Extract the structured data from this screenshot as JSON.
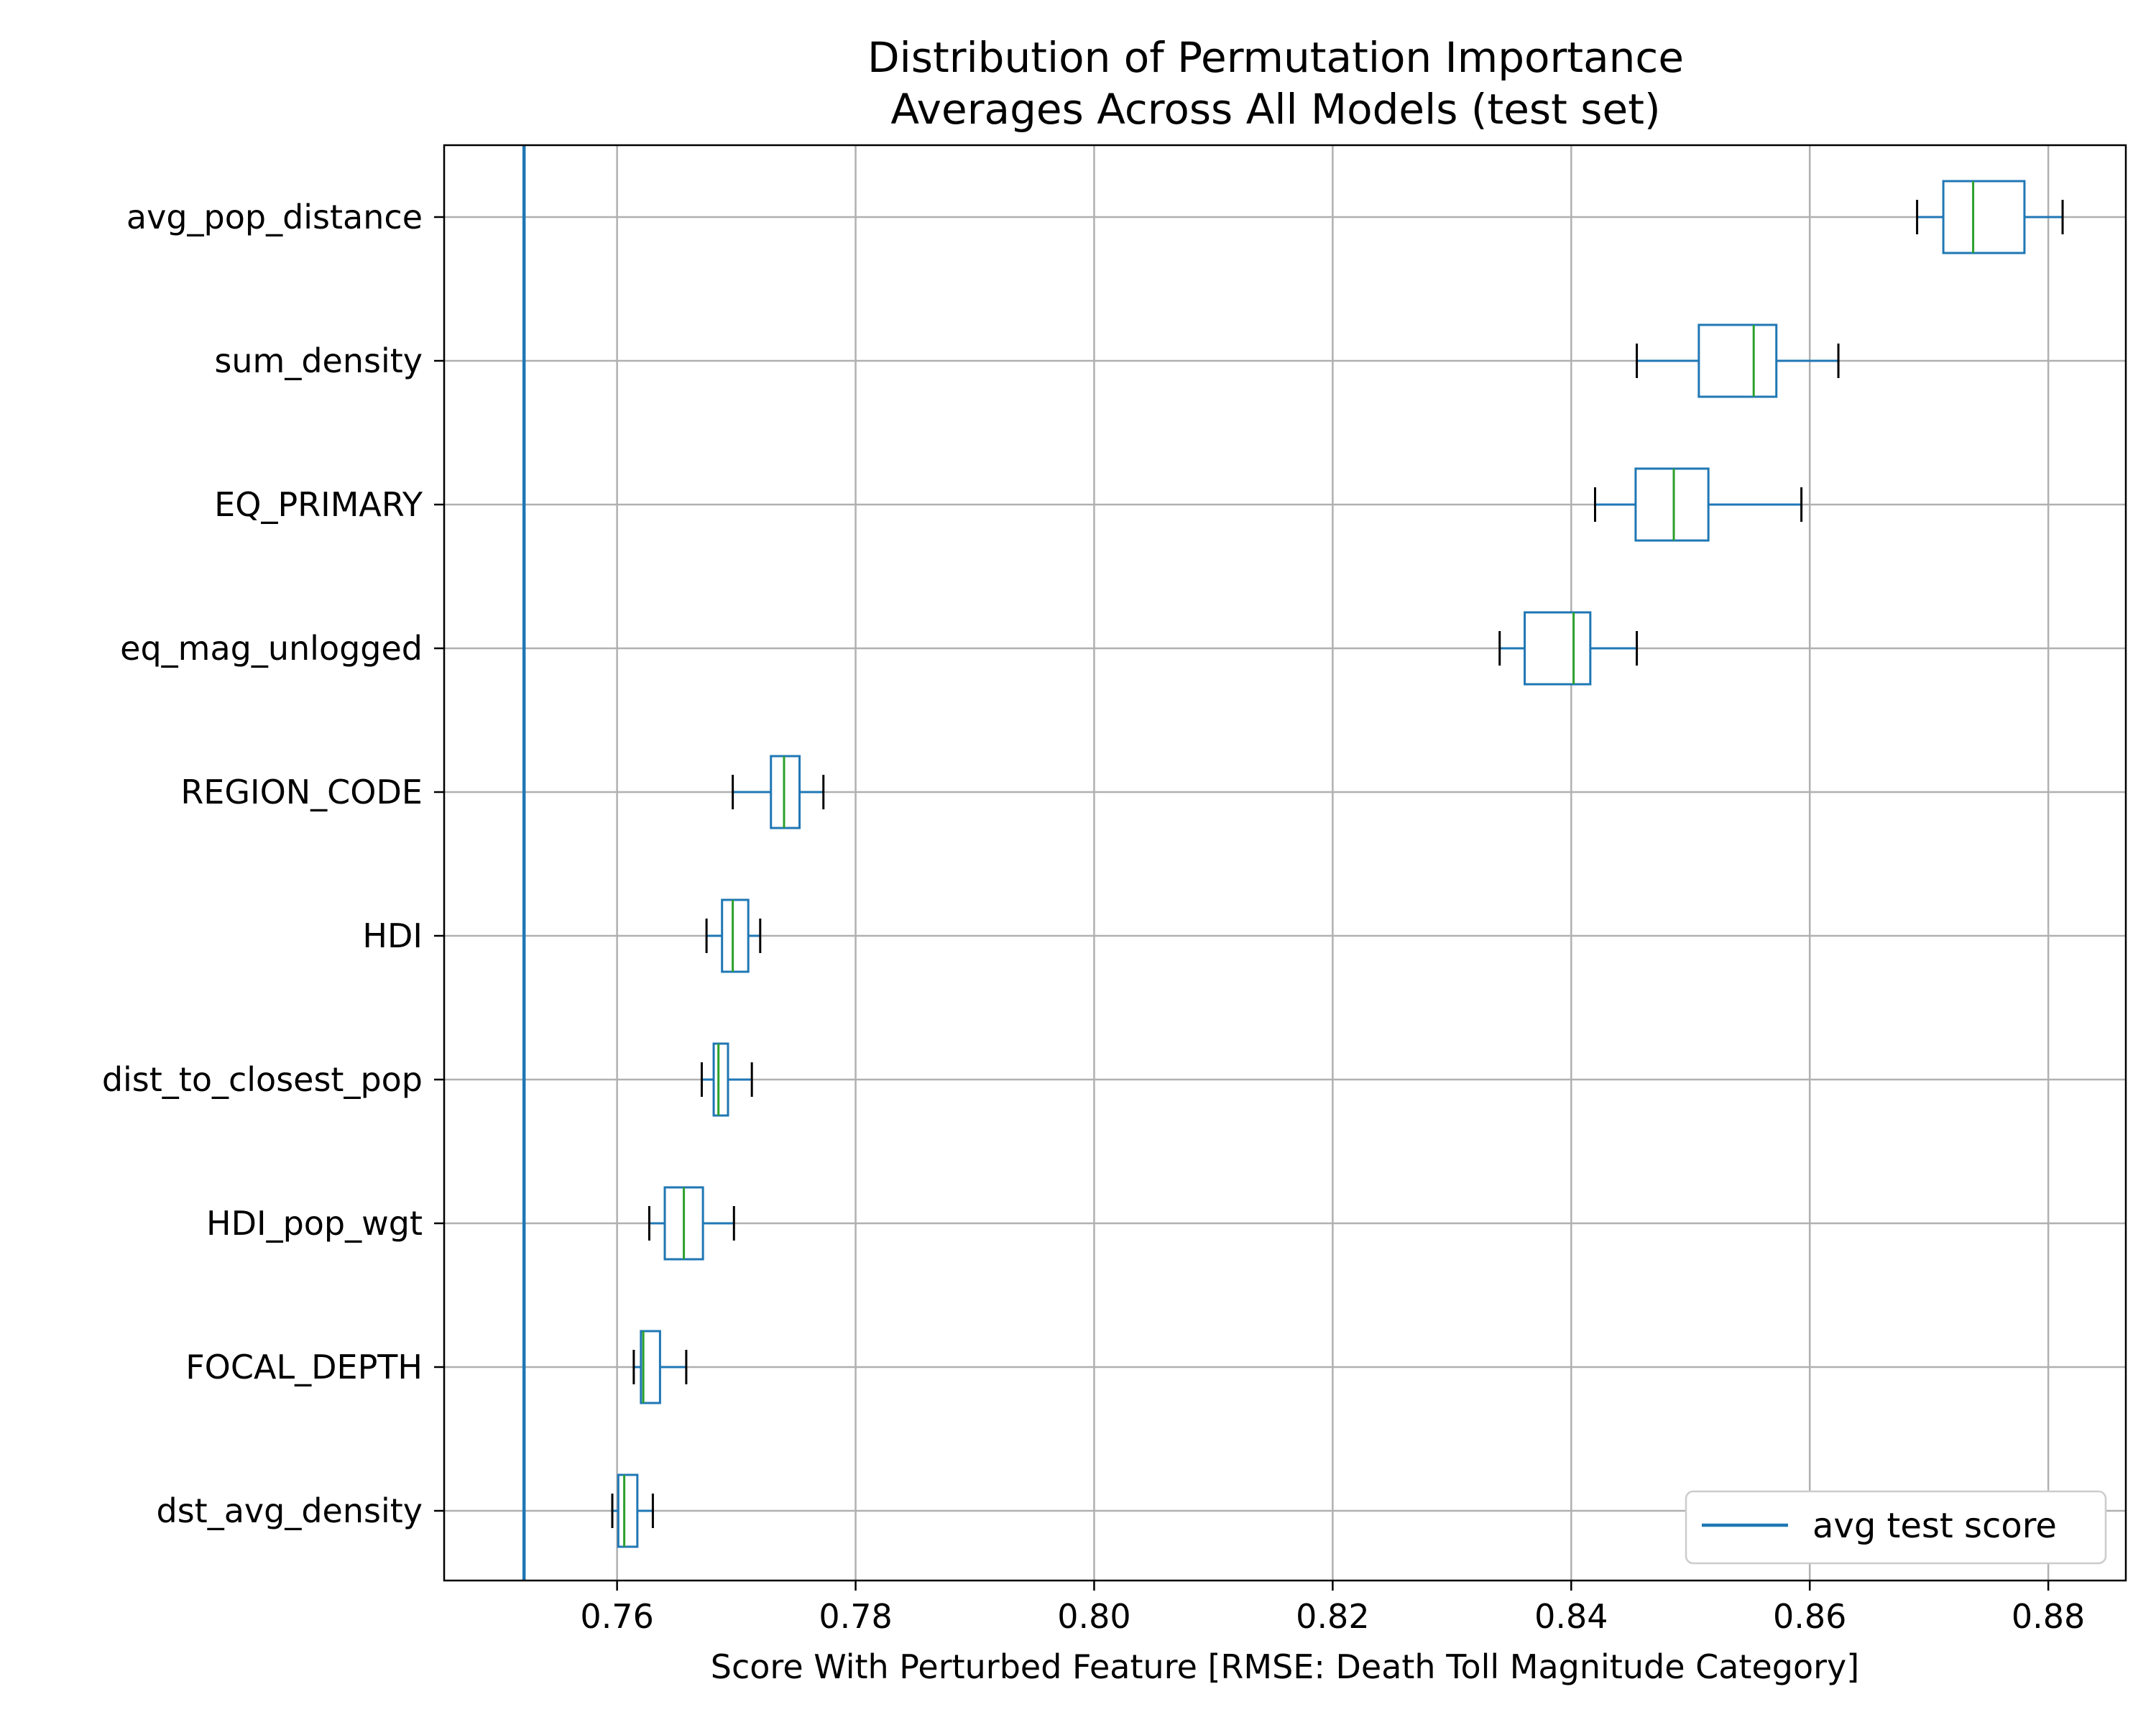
{
  "chart_data": {
    "type": "boxplot",
    "orientation": "horizontal",
    "title_line1": "Distribution of Permutation Importance",
    "title_line2": "Averages Across All Models (test set)",
    "xlabel": "Score With Perturbed Feature [RMSE: Death Toll Magnitude Category]",
    "xlim": [
      0.7455,
      0.8865
    ],
    "x_ticks": [
      "0.76",
      "0.78",
      "0.80",
      "0.82",
      "0.84",
      "0.86",
      "0.88"
    ],
    "grid": true,
    "legend_position": "lower-right",
    "reference_line": {
      "name": "avg test score",
      "value": 0.7522,
      "color": "#1f77b4"
    },
    "colors": {
      "box": "#1f77b4",
      "median": "#2ca02c",
      "caps": "#000000",
      "grid": "#b0b0b0"
    },
    "features": [
      {
        "name": "avg_pop_distance",
        "whisker_low": 0.869,
        "q1": 0.8712,
        "median": 0.8737,
        "q3": 0.878,
        "whisker_high": 0.8812
      },
      {
        "name": "sum_density",
        "whisker_low": 0.8455,
        "q1": 0.8507,
        "median": 0.8553,
        "q3": 0.8572,
        "whisker_high": 0.8624
      },
      {
        "name": "EQ_PRIMARY",
        "whisker_low": 0.842,
        "q1": 0.8454,
        "median": 0.8486,
        "q3": 0.8515,
        "whisker_high": 0.8593
      },
      {
        "name": "eq_mag_unlogged",
        "whisker_low": 0.834,
        "q1": 0.8361,
        "median": 0.8402,
        "q3": 0.8416,
        "whisker_high": 0.8455
      },
      {
        "name": "REGION_CODE",
        "whisker_low": 0.7697,
        "q1": 0.7729,
        "median": 0.774,
        "q3": 0.7753,
        "whisker_high": 0.7773
      },
      {
        "name": "HDI",
        "whisker_low": 0.7675,
        "q1": 0.7688,
        "median": 0.7697,
        "q3": 0.771,
        "whisker_high": 0.772
      },
      {
        "name": "dist_to_closest_pop",
        "whisker_low": 0.7671,
        "q1": 0.7681,
        "median": 0.7685,
        "q3": 0.7693,
        "whisker_high": 0.7713
      },
      {
        "name": "HDI_pop_wgt",
        "whisker_low": 0.7627,
        "q1": 0.764,
        "median": 0.7656,
        "q3": 0.7672,
        "whisker_high": 0.7698
      },
      {
        "name": "FOCAL_DEPTH",
        "whisker_low": 0.7614,
        "q1": 0.762,
        "median": 0.7622,
        "q3": 0.7636,
        "whisker_high": 0.7658
      },
      {
        "name": "dst_avg_density",
        "whisker_low": 0.7596,
        "q1": 0.7601,
        "median": 0.7606,
        "q3": 0.7617,
        "whisker_high": 0.763
      }
    ]
  }
}
